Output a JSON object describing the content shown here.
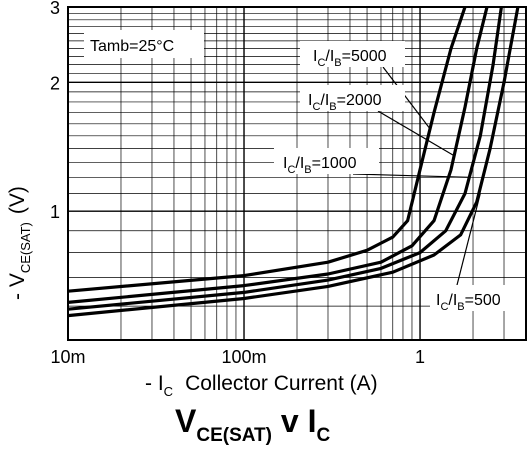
{
  "chart_data": {
    "type": "line",
    "title": {
      "main": "V",
      "main_sub": "CE(SAT)",
      "mid": " v I",
      "mid_sub": "C"
    },
    "xlabel": {
      "prefix": "- I",
      "sub": "C",
      "text": "Collector Current (A)"
    },
    "ylabel": {
      "prefix": "- V",
      "sub": "CE(SAT)",
      "unit": "(V)"
    },
    "x_scale": "log",
    "y_scale": "log",
    "xlim": [
      0.01,
      4.0
    ],
    "ylim": [
      0.5,
      3.0
    ],
    "x_ticks": [
      {
        "value": 0.01,
        "label": "10m"
      },
      {
        "value": 0.1,
        "label": "100m"
      },
      {
        "value": 1,
        "label": "1"
      }
    ],
    "y_ticks": [
      {
        "value": 1,
        "label": "1"
      },
      {
        "value": 2,
        "label": "2"
      },
      {
        "value": 3,
        "label": "3"
      }
    ],
    "grid": true,
    "annotation": "Tamb=25°C",
    "series": [
      {
        "name": "IC/IB=5000",
        "label_parts": [
          "I",
          "C",
          "/I",
          "B",
          "=5000"
        ],
        "points": [
          [
            0.01,
            0.65
          ],
          [
            0.1,
            0.707
          ],
          [
            0.3,
            0.76
          ],
          [
            0.5,
            0.81
          ],
          [
            0.7,
            0.87
          ],
          [
            0.85,
            0.95
          ],
          [
            1.0,
            1.25
          ],
          [
            1.2,
            1.7
          ],
          [
            1.5,
            2.4
          ],
          [
            1.8,
            3.0
          ]
        ]
      },
      {
        "name": "IC/IB=2000",
        "label_parts": [
          "I",
          "C",
          "/I",
          "B",
          "=2000"
        ],
        "points": [
          [
            0.01,
            0.612
          ],
          [
            0.1,
            0.67
          ],
          [
            0.3,
            0.713
          ],
          [
            0.6,
            0.76
          ],
          [
            0.9,
            0.83
          ],
          [
            1.2,
            0.95
          ],
          [
            1.5,
            1.25
          ],
          [
            1.8,
            1.75
          ],
          [
            2.1,
            2.4
          ],
          [
            2.4,
            3.0
          ]
        ]
      },
      {
        "name": "IC/IB=1000",
        "label_parts": [
          "I",
          "C",
          "/I",
          "B",
          "=1000"
        ],
        "points": [
          [
            0.01,
            0.59
          ],
          [
            0.1,
            0.646
          ],
          [
            0.3,
            0.69
          ],
          [
            0.6,
            0.735
          ],
          [
            1.0,
            0.8
          ],
          [
            1.4,
            0.9
          ],
          [
            1.8,
            1.1
          ],
          [
            2.2,
            1.5
          ],
          [
            2.6,
            2.2
          ],
          [
            2.9,
            3.0
          ]
        ]
      },
      {
        "name": "IC/IB=500",
        "label_parts": [
          "I",
          "C",
          "/I",
          "B",
          "=500"
        ],
        "points": [
          [
            0.01,
            0.57
          ],
          [
            0.1,
            0.625
          ],
          [
            0.3,
            0.667
          ],
          [
            0.7,
            0.72
          ],
          [
            1.2,
            0.79
          ],
          [
            1.7,
            0.88
          ],
          [
            2.1,
            1.05
          ],
          [
            2.5,
            1.4
          ],
          [
            3.0,
            2.0
          ],
          [
            3.6,
            3.0
          ]
        ]
      }
    ]
  }
}
